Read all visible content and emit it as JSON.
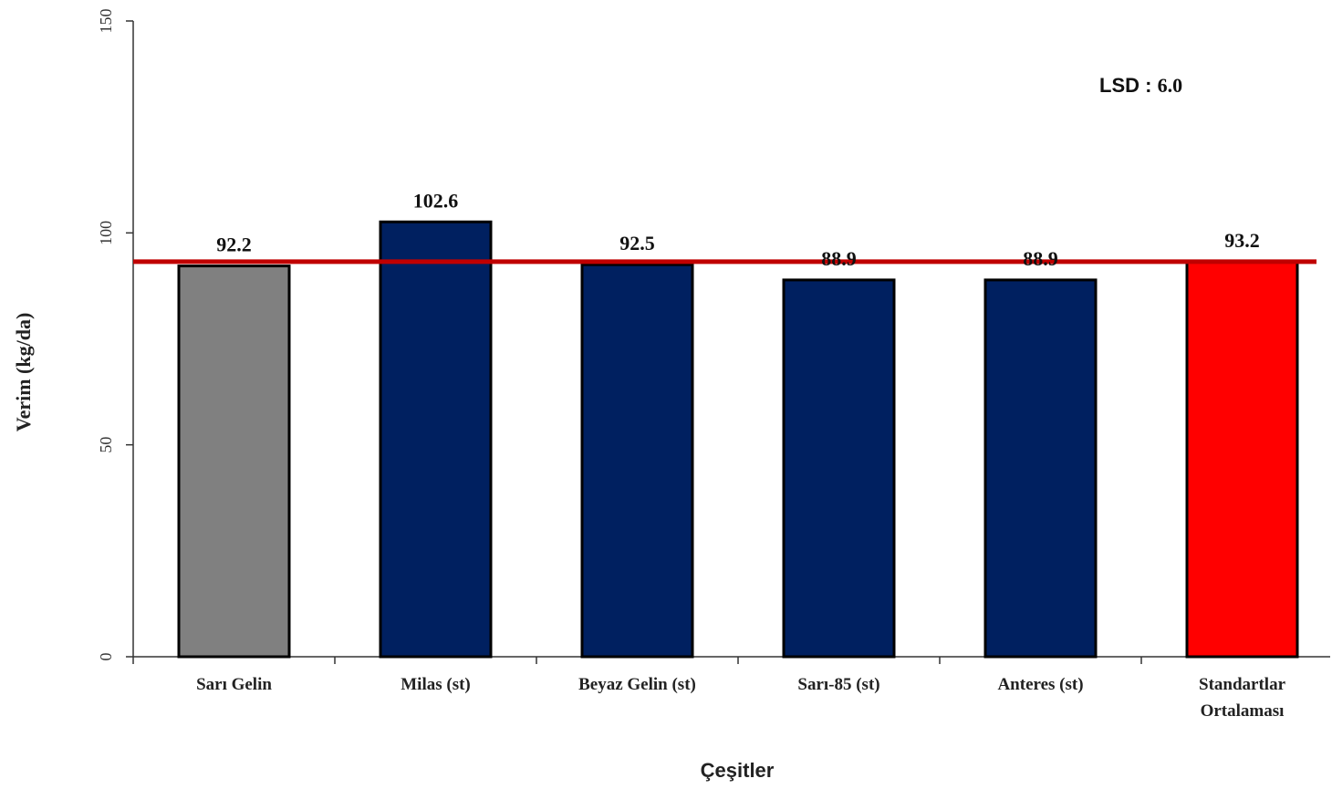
{
  "chart_data": {
    "type": "bar",
    "xlabel": "Çeşitler",
    "ylabel": "Verim (kg/da)",
    "ylim": [
      0,
      150
    ],
    "yticks": [
      0,
      50,
      100,
      150
    ],
    "categories": [
      [
        "Sarı Gelin"
      ],
      [
        "Milas (st)"
      ],
      [
        "Beyaz Gelin (st)"
      ],
      [
        "Sarı-85 (st)"
      ],
      [
        "Anteres (st)"
      ],
      [
        "Standartlar",
        "Ortalaması"
      ]
    ],
    "values": [
      92.2,
      102.6,
      92.5,
      88.9,
      88.9,
      93.2
    ],
    "value_labels": [
      "92.2",
      "102.6",
      "92.5",
      "88.9",
      "88.9",
      "93.2"
    ],
    "bar_colors": [
      "#808080",
      "#002060",
      "#002060",
      "#002060",
      "#002060",
      "#ff0000"
    ],
    "reference_line": {
      "value": 93.2,
      "color": "#c00000"
    },
    "annotation": {
      "label": "LSD",
      "sep": " : ",
      "value": "6.0"
    },
    "grid": false,
    "legend": "none"
  }
}
